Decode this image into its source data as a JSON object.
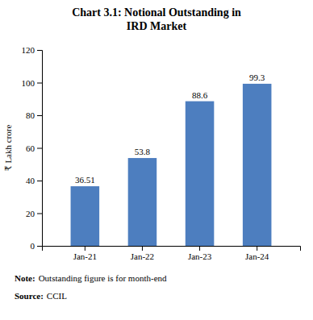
{
  "chart_data": {
    "type": "bar",
    "title": "Chart 3.1: Notional Outstanding in\nIRD Market",
    "categories": [
      "Jan-21",
      "Jan-22",
      "Jan-23",
      "Jan-24"
    ],
    "values": [
      36.51,
      53.8,
      88.6,
      99.3
    ],
    "color": "#4d7ebf",
    "ylabel": "₹ Lakh crore",
    "ylim": [
      0,
      120
    ],
    "yticks": [
      0,
      20,
      40,
      60,
      80,
      100,
      120
    ],
    "grid": false,
    "data_labels": true,
    "notes": [
      {
        "label": "Note:",
        "text": "Outstanding figure is for month-end"
      },
      {
        "label": "Source:",
        "text": "CCIL"
      }
    ]
  }
}
